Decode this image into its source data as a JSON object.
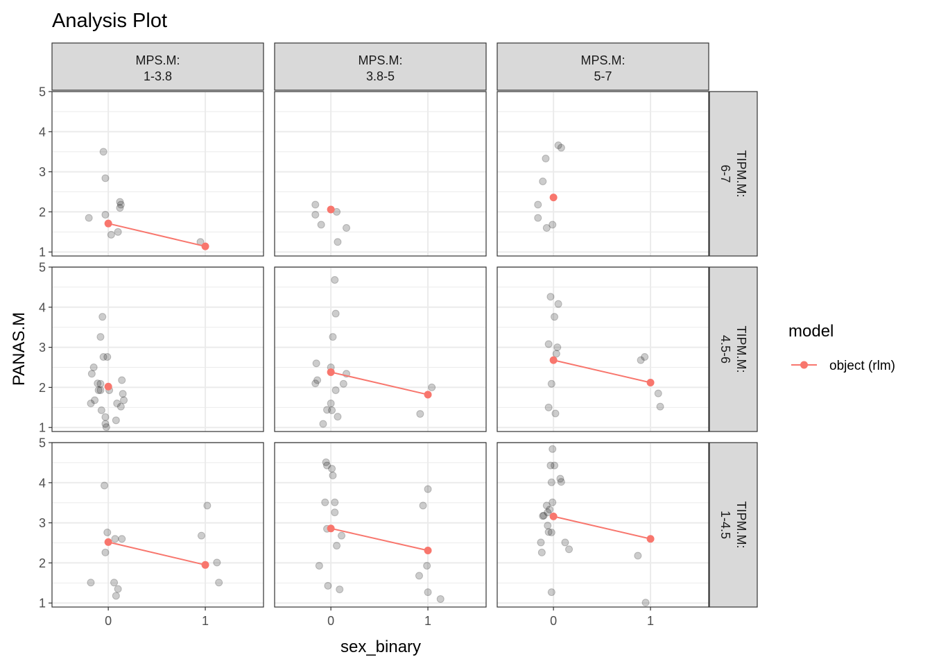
{
  "chart_data": {
    "type": "scatter",
    "title": "Analysis Plot",
    "xlabel": "sex_binary",
    "ylabel": "PANAS.M",
    "x_ticks": [
      0,
      1
    ],
    "y_ticks": [
      1,
      2,
      3,
      4,
      5
    ],
    "xlim": [
      -0.58,
      1.6
    ],
    "ylim": [
      0.9,
      5.0
    ],
    "grid": true,
    "column_strips": [
      "MPS.M:\n1-3.8",
      "MPS.M:\n3.8-5",
      "MPS.M:\n5-7"
    ],
    "row_strips": [
      "TIPM.M:\n6-7",
      "TIPM.M:\n4.5-6",
      "TIPM.M:\n1-4.5"
    ],
    "legend": {
      "title": "model",
      "entries": [
        "object (rlm)"
      ],
      "placement": "right"
    },
    "colors": {
      "model": "#F8766D",
      "points": "#000000",
      "strip_fill": "#D9D9D9",
      "grid": "#EBEBEB"
    },
    "panels": [
      {
        "row": 0,
        "col": 0,
        "points": [
          [
            -0.05,
            3.5
          ],
          [
            -0.03,
            2.84
          ],
          [
            0.12,
            2.25
          ],
          [
            0.13,
            2.18
          ],
          [
            0.12,
            2.1
          ],
          [
            -0.03,
            1.93
          ],
          [
            -0.2,
            1.85
          ],
          [
            0.1,
            1.5
          ],
          [
            0.03,
            1.43
          ],
          [
            0.95,
            1.25
          ]
        ],
        "model": [
          [
            0,
            1.71
          ],
          [
            1,
            1.14
          ]
        ]
      },
      {
        "row": 0,
        "col": 1,
        "points": [
          [
            -0.16,
            2.18
          ],
          [
            -0.16,
            1.93
          ],
          [
            0.06,
            2.0
          ],
          [
            -0.1,
            1.68
          ],
          [
            0.16,
            1.6
          ],
          [
            0.07,
            1.25
          ]
        ],
        "model": [
          [
            0,
            2.06
          ]
        ]
      },
      {
        "row": 0,
        "col": 2,
        "points": [
          [
            0.05,
            3.66
          ],
          [
            0.08,
            3.6
          ],
          [
            -0.08,
            3.33
          ],
          [
            -0.11,
            2.76
          ],
          [
            -0.16,
            2.18
          ],
          [
            -0.16,
            1.85
          ],
          [
            -0.01,
            1.68
          ],
          [
            -0.07,
            1.6
          ]
        ],
        "model": [
          [
            0,
            2.36
          ]
        ]
      },
      {
        "row": 1,
        "col": 0,
        "points": [
          [
            -0.06,
            3.76
          ],
          [
            -0.08,
            3.26
          ],
          [
            -0.05,
            2.76
          ],
          [
            -0.01,
            2.76
          ],
          [
            -0.15,
            2.5
          ],
          [
            -0.17,
            2.34
          ],
          [
            -0.11,
            2.1
          ],
          [
            -0.08,
            2.09
          ],
          [
            0.14,
            2.18
          ],
          [
            -0.1,
            1.93
          ],
          [
            -0.08,
            1.93
          ],
          [
            0.01,
            1.93
          ],
          [
            0.15,
            1.84
          ],
          [
            0.16,
            1.68
          ],
          [
            -0.14,
            1.68
          ],
          [
            -0.18,
            1.6
          ],
          [
            0.09,
            1.6
          ],
          [
            0.13,
            1.52
          ],
          [
            -0.07,
            1.43
          ],
          [
            -0.03,
            1.26
          ],
          [
            0.08,
            1.18
          ],
          [
            -0.03,
            1.09
          ],
          [
            -0.02,
            1.01
          ]
        ],
        "model": [
          [
            0,
            2.02
          ]
        ]
      },
      {
        "row": 1,
        "col": 2,
        "points": [
          [
            -0.03,
            4.26
          ],
          [
            0.05,
            4.08
          ],
          [
            0.01,
            3.76
          ],
          [
            -0.05,
            3.08
          ],
          [
            0.04,
            3.0
          ],
          [
            0.03,
            2.84
          ],
          [
            0.94,
            2.76
          ],
          [
            0.9,
            2.68
          ],
          [
            -0.02,
            2.09
          ],
          [
            1.08,
            1.85
          ],
          [
            1.1,
            1.52
          ],
          [
            -0.05,
            1.5
          ],
          [
            0.02,
            1.35
          ]
        ],
        "model": [
          [
            0,
            2.68
          ],
          [
            1,
            2.12
          ]
        ]
      },
      {
        "row": 1,
        "col": 1,
        "points": [
          [
            0.04,
            4.68
          ],
          [
            0.05,
            3.84
          ],
          [
            0.02,
            3.26
          ],
          [
            -0.15,
            2.6
          ],
          [
            0.0,
            2.5
          ],
          [
            0.16,
            2.34
          ],
          [
            -0.14,
            2.18
          ],
          [
            0.13,
            2.09
          ],
          [
            -0.16,
            2.1
          ],
          [
            0.05,
            1.93
          ],
          [
            0.0,
            1.6
          ],
          [
            -0.04,
            1.44
          ],
          [
            0.01,
            1.43
          ],
          [
            0.07,
            1.27
          ],
          [
            -0.08,
            1.09
          ],
          [
            0.92,
            1.34
          ],
          [
            1.04,
            2.0
          ]
        ],
        "model": [
          [
            0,
            2.38
          ],
          [
            1,
            1.82
          ]
        ]
      },
      {
        "row": 2,
        "col": 0,
        "points": [
          [
            -0.04,
            3.93
          ],
          [
            -0.01,
            2.76
          ],
          [
            0.07,
            2.6
          ],
          [
            0.14,
            2.6
          ],
          [
            -0.03,
            2.26
          ],
          [
            -0.18,
            1.51
          ],
          [
            0.06,
            1.51
          ],
          [
            0.1,
            1.35
          ],
          [
            0.08,
            1.18
          ],
          [
            1.02,
            3.43
          ],
          [
            0.96,
            2.68
          ],
          [
            1.12,
            2.01
          ],
          [
            1.14,
            1.51
          ]
        ],
        "model": [
          [
            0,
            2.52
          ],
          [
            1,
            1.95
          ]
        ]
      },
      {
        "row": 2,
        "col": 1,
        "points": [
          [
            -0.05,
            4.51
          ],
          [
            -0.04,
            4.43
          ],
          [
            0.01,
            4.35
          ],
          [
            0.02,
            4.18
          ],
          [
            -0.06,
            3.51
          ],
          [
            0.04,
            3.51
          ],
          [
            0.04,
            3.26
          ],
          [
            -0.04,
            2.85
          ],
          [
            0.11,
            2.68
          ],
          [
            0.06,
            2.43
          ],
          [
            -0.12,
            1.93
          ],
          [
            -0.03,
            1.43
          ],
          [
            0.09,
            1.34
          ],
          [
            1.0,
            3.84
          ],
          [
            0.95,
            3.43
          ],
          [
            0.99,
            1.93
          ],
          [
            0.91,
            1.68
          ],
          [
            1.0,
            1.27
          ],
          [
            1.13,
            1.1
          ]
        ],
        "model": [
          [
            0,
            2.86
          ],
          [
            1,
            2.31
          ]
        ]
      },
      {
        "row": 2,
        "col": 2,
        "points": [
          [
            -0.01,
            4.84
          ],
          [
            -0.03,
            4.43
          ],
          [
            0.01,
            4.43
          ],
          [
            0.07,
            4.1
          ],
          [
            0.08,
            4.02
          ],
          [
            -0.02,
            4.01
          ],
          [
            -0.01,
            3.51
          ],
          [
            -0.07,
            3.43
          ],
          [
            -0.04,
            3.33
          ],
          [
            -0.06,
            3.26
          ],
          [
            -0.1,
            3.18
          ],
          [
            -0.11,
            3.17
          ],
          [
            -0.06,
            2.93
          ],
          [
            -0.05,
            2.77
          ],
          [
            -0.02,
            2.76
          ],
          [
            0.12,
            2.51
          ],
          [
            -0.13,
            2.51
          ],
          [
            0.16,
            2.34
          ],
          [
            -0.12,
            2.26
          ],
          [
            -0.02,
            1.27
          ],
          [
            0.87,
            2.18
          ],
          [
            0.95,
            1.01
          ]
        ],
        "model": [
          [
            0,
            3.16
          ],
          [
            1,
            2.6
          ]
        ]
      }
    ]
  }
}
